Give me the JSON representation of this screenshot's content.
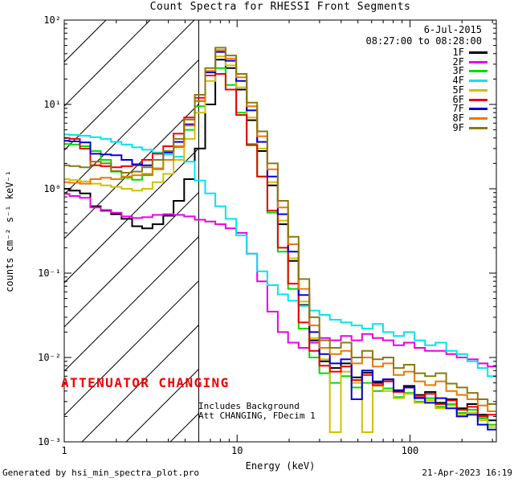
{
  "header": {
    "title": "Count Spectra for RHESSI Front Segments"
  },
  "annotations": {
    "date_line1": "6-Jul-2015",
    "date_line2": "08:27:00 to 08:28:00",
    "attenuator_text": "ATTENUATOR CHANGING",
    "attenuator_color": "#ee0000",
    "note_line1": "Includes Background",
    "note_line2": "Att CHANGING, FDecim 1",
    "footer_left": "Generated by hsi_min_spectra_plot.pro",
    "footer_right": "21-Apr-2023 16:19"
  },
  "chart_data": {
    "type": "line",
    "subtype": "histogram-step-log-log",
    "title": "Count Spectra for RHESSI Front Segments",
    "xlabel": "Energy (keV)",
    "ylabel": "counts cm⁻² s⁻¹ keV⁻¹",
    "xscale": "log",
    "yscale": "log",
    "xlim": [
      1,
      316
    ],
    "ylim": [
      0.001,
      100
    ],
    "x_ticks": [
      1,
      10,
      100
    ],
    "x_tick_labels": [
      "1",
      "10",
      "100"
    ],
    "y_ticks": [
      100,
      10,
      1,
      0.1,
      0.01,
      0.001
    ],
    "y_tick_labels": [
      "10²",
      "10¹",
      "10⁰",
      "10⁻¹",
      "10⁻²",
      "10⁻³"
    ],
    "grid": false,
    "legend_position": "top-right",
    "vline_x_keV": 6,
    "hatch_region_keV": [
      1,
      6
    ],
    "energies": [
      1.0,
      1.15,
      1.32,
      1.52,
      1.74,
      2.0,
      2.3,
      2.65,
      3.0,
      3.5,
      4.0,
      4.6,
      5.3,
      6.1,
      7.0,
      8.0,
      9.2,
      10.6,
      12.2,
      14,
      16,
      18.5,
      21,
      24.5,
      28,
      32,
      37,
      43,
      49,
      57,
      65,
      75,
      86,
      99,
      114,
      131,
      151,
      174,
      200,
      230,
      264,
      300
    ],
    "series": [
      {
        "name": "1F",
        "color": "#000000",
        "values": [
          1.0,
          0.95,
          0.88,
          0.62,
          0.55,
          0.5,
          0.44,
          0.36,
          0.34,
          0.38,
          0.48,
          0.72,
          1.3,
          3.0,
          10,
          34,
          27,
          15,
          6.5,
          2.8,
          1.1,
          0.38,
          0.14,
          0.042,
          0.016,
          0.009,
          0.0075,
          0.0085,
          0.0058,
          0.0066,
          0.005,
          0.0055,
          0.0041,
          0.0046,
          0.0036,
          0.0039,
          0.0029,
          0.0032,
          0.0025,
          0.0028,
          0.0021,
          0.0018
        ]
      },
      {
        "name": "2F",
        "color": "#e800e8",
        "values": [
          0.87,
          0.82,
          0.78,
          0.6,
          0.56,
          0.52,
          0.47,
          0.45,
          0.46,
          0.49,
          0.5,
          0.49,
          0.47,
          0.43,
          0.41,
          0.38,
          0.34,
          0.3,
          0.17,
          0.08,
          0.035,
          0.02,
          0.015,
          0.013,
          0.015,
          0.017,
          0.016,
          0.018,
          0.016,
          0.019,
          0.017,
          0.016,
          0.014,
          0.015,
          0.013,
          0.012,
          0.012,
          0.011,
          0.01,
          0.0095,
          0.0085,
          0.0078
        ]
      },
      {
        "name": "3F",
        "color": "#00dd00",
        "values": [
          3.4,
          3.35,
          3.2,
          2.8,
          2.2,
          1.6,
          1.35,
          1.28,
          1.45,
          1.7,
          2.2,
          3.1,
          5.0,
          9.5,
          24,
          27,
          17,
          8.0,
          3.4,
          1.4,
          0.52,
          0.18,
          0.065,
          0.022,
          0.01,
          0.0065,
          0.005,
          0.006,
          0.0044,
          0.005,
          0.004,
          0.0043,
          0.0034,
          0.0038,
          0.003,
          0.0033,
          0.0026,
          0.0028,
          0.0022,
          0.0024,
          0.0019,
          0.0016
        ]
      },
      {
        "name": "4F",
        "color": "#00e5ee",
        "values": [
          4.4,
          4.35,
          4.25,
          4.1,
          3.9,
          3.6,
          3.35,
          3.1,
          2.9,
          2.7,
          2.55,
          2.4,
          2.1,
          1.25,
          0.88,
          0.62,
          0.44,
          0.28,
          0.17,
          0.105,
          0.072,
          0.056,
          0.047,
          0.041,
          0.036,
          0.032,
          0.028,
          0.026,
          0.024,
          0.022,
          0.025,
          0.02,
          0.018,
          0.02,
          0.016,
          0.014,
          0.015,
          0.012,
          0.011,
          0.009,
          0.0075,
          0.006
        ]
      },
      {
        "name": "5F",
        "color": "#cfc000",
        "values": [
          1.3,
          1.27,
          1.22,
          1.15,
          1.1,
          1.05,
          1.0,
          0.95,
          1.0,
          1.2,
          1.5,
          2.2,
          3.9,
          8.0,
          19,
          37,
          29,
          16,
          7.0,
          3.0,
          1.2,
          0.42,
          0.15,
          0.046,
          0.017,
          0.0095,
          0.0013,
          0.0068,
          0.005,
          0.0013,
          0.0046,
          0.004,
          0.0033,
          0.0037,
          0.0029,
          0.0031,
          0.0025,
          0.0027,
          0.0021,
          0.0022,
          0.0018,
          0.0015
        ]
      },
      {
        "name": "6F",
        "color": "#ee0000",
        "values": [
          4.0,
          3.9,
          3.0,
          1.9,
          1.85,
          1.8,
          1.85,
          1.9,
          2.2,
          2.6,
          3.2,
          4.5,
          7.0,
          12,
          22,
          23,
          15,
          7.5,
          3.3,
          1.4,
          0.55,
          0.2,
          0.075,
          0.026,
          0.012,
          0.008,
          0.0068,
          0.0078,
          0.0054,
          0.0062,
          0.0047,
          0.0052,
          0.0039,
          0.0044,
          0.0034,
          0.0037,
          0.0028,
          0.0031,
          0.0024,
          0.0026,
          0.002,
          0.0021
        ]
      },
      {
        "name": "7F",
        "color": "#0000dd",
        "values": [
          3.7,
          3.65,
          3.55,
          2.6,
          2.55,
          2.5,
          2.2,
          1.95,
          1.9,
          2.2,
          2.7,
          3.6,
          5.8,
          11,
          24,
          42,
          33,
          19,
          8.5,
          3.6,
          1.4,
          0.5,
          0.18,
          0.055,
          0.02,
          0.011,
          0.0085,
          0.0095,
          0.0032,
          0.007,
          0.0052,
          0.0055,
          0.004,
          0.0044,
          0.0033,
          0.0029,
          0.0033,
          0.0025,
          0.002,
          0.0021,
          0.0016,
          0.0014
        ]
      },
      {
        "name": "8F",
        "color": "#ee7700",
        "values": [
          1.2,
          1.18,
          1.15,
          1.3,
          1.35,
          1.3,
          1.4,
          1.45,
          1.5,
          1.75,
          2.2,
          3.2,
          5.6,
          11,
          25,
          44,
          35,
          21,
          9.5,
          4.2,
          1.7,
          0.6,
          0.22,
          0.065,
          0.024,
          0.013,
          0.011,
          0.012,
          0.0085,
          0.01,
          0.0078,
          0.0085,
          0.0062,
          0.0068,
          0.0052,
          0.0047,
          0.0052,
          0.004,
          0.0036,
          0.0032,
          0.0027,
          0.0023
        ]
      },
      {
        "name": "9F",
        "color": "#8a7a10",
        "values": [
          1.9,
          1.86,
          1.8,
          2.1,
          2.0,
          1.62,
          1.55,
          1.6,
          1.8,
          2.2,
          2.8,
          3.9,
          6.6,
          13,
          27,
          47,
          38,
          23,
          10.5,
          4.8,
          2.0,
          0.72,
          0.27,
          0.085,
          0.03,
          0.016,
          0.013,
          0.015,
          0.01,
          0.012,
          0.0095,
          0.01,
          0.0075,
          0.0082,
          0.0065,
          0.006,
          0.0065,
          0.0049,
          0.0044,
          0.0038,
          0.0032,
          0.0028
        ]
      }
    ]
  }
}
